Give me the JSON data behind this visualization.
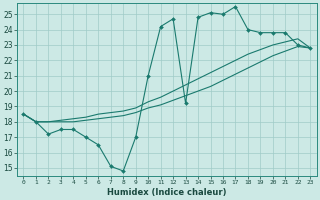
{
  "title": "",
  "xlabel": "Humidex (Indice chaleur)",
  "ylabel": "",
  "bg_color": "#cce9e5",
  "grid_color": "#a0ccc8",
  "line_color": "#1a7a6e",
  "xlim": [
    -0.5,
    23.5
  ],
  "ylim": [
    14.5,
    25.7
  ],
  "xticks": [
    0,
    1,
    2,
    3,
    4,
    5,
    6,
    7,
    8,
    9,
    10,
    11,
    12,
    13,
    14,
    15,
    16,
    17,
    18,
    19,
    20,
    21,
    22,
    23
  ],
  "yticks": [
    15,
    16,
    17,
    18,
    19,
    20,
    21,
    22,
    23,
    24,
    25
  ],
  "line1_x": [
    0,
    1,
    2,
    3,
    4,
    5,
    6,
    7,
    8,
    9,
    10,
    11,
    12,
    13,
    14,
    15,
    16,
    17,
    18,
    19,
    20,
    21,
    22,
    23
  ],
  "line1_y": [
    18.5,
    18.0,
    17.2,
    17.5,
    17.5,
    17.0,
    16.5,
    15.1,
    14.8,
    17.0,
    21.0,
    24.2,
    24.7,
    19.2,
    24.8,
    25.1,
    25.0,
    25.5,
    24.0,
    23.8,
    23.8,
    23.8,
    23.0,
    22.8
  ],
  "line2_x": [
    0,
    1,
    2,
    3,
    4,
    5,
    6,
    7,
    8,
    9,
    10,
    11,
    12,
    13,
    14,
    15,
    16,
    17,
    18,
    19,
    20,
    21,
    22,
    23
  ],
  "line2_y": [
    18.5,
    18.0,
    18.0,
    18.0,
    18.0,
    18.1,
    18.2,
    18.3,
    18.4,
    18.6,
    18.9,
    19.1,
    19.4,
    19.7,
    20.0,
    20.3,
    20.7,
    21.1,
    21.5,
    21.9,
    22.3,
    22.6,
    22.9,
    22.8
  ],
  "line3_x": [
    0,
    1,
    2,
    3,
    4,
    5,
    6,
    7,
    8,
    9,
    10,
    11,
    12,
    13,
    14,
    15,
    16,
    17,
    18,
    19,
    20,
    21,
    22,
    23
  ],
  "line3_y": [
    18.5,
    18.0,
    18.0,
    18.1,
    18.2,
    18.3,
    18.5,
    18.6,
    18.7,
    18.9,
    19.3,
    19.6,
    20.0,
    20.4,
    20.8,
    21.2,
    21.6,
    22.0,
    22.4,
    22.7,
    23.0,
    23.2,
    23.4,
    22.8
  ]
}
